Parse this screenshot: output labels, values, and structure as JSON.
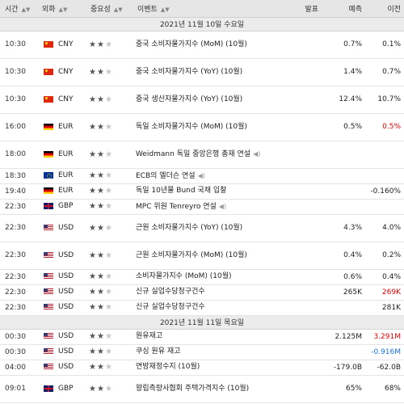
{
  "header": {
    "time": "시간",
    "currency": "외화",
    "importance": "중요성",
    "event": "이벤트",
    "actual": "발표",
    "forecast": "예측",
    "previous": "이전",
    "sort_icon": "sort-arrow-icon"
  },
  "colors": {
    "up": "#e00000",
    "down": "#1a73e8",
    "header_bg": "#e6e6e6"
  },
  "rows": [
    {
      "type": "date",
      "label": "2021년 11월 10일 수요일"
    },
    {
      "type": "event",
      "time": "10:30",
      "flag": "cn",
      "cur": "CNY",
      "stars": 2,
      "event": "중국 소비자물가지수 (MoM) (10월)",
      "actual": "",
      "forecast": "0.7%",
      "previous": "0.1%",
      "prev_color": "",
      "speech": false,
      "tall": true
    },
    {
      "type": "event",
      "time": "10:30",
      "flag": "cn",
      "cur": "CNY",
      "stars": 2,
      "event": "중국 소비자물가지수 (YoY) (10월)",
      "actual": "",
      "forecast": "1.4%",
      "previous": "0.7%",
      "prev_color": "",
      "speech": false,
      "tall": true
    },
    {
      "type": "event",
      "time": "10:30",
      "flag": "cn",
      "cur": "CNY",
      "stars": 2,
      "event": "중국 생산자물가지수 (YoY) (10월)",
      "actual": "",
      "forecast": "12.4%",
      "previous": "10.7%",
      "prev_color": "",
      "speech": false,
      "tall": true
    },
    {
      "type": "event",
      "time": "16:00",
      "flag": "de",
      "cur": "EUR",
      "stars": 2,
      "event": "독일 소비자물가지수 (MoM) (10월)",
      "actual": "",
      "forecast": "0.5%",
      "previous": "0.5%",
      "prev_color": "up",
      "speech": false,
      "tall": true
    },
    {
      "type": "event",
      "time": "18:00",
      "flag": "de",
      "cur": "EUR",
      "stars": 2,
      "event": "Weidmann 독일 중앙은행 총재 연설",
      "actual": "",
      "forecast": "",
      "previous": "",
      "prev_color": "",
      "speech": true,
      "tall": true
    },
    {
      "type": "event",
      "time": "18:30",
      "flag": "eu",
      "cur": "EUR",
      "stars": 2,
      "event": "ECB의 엘더슨 연설",
      "actual": "",
      "forecast": "",
      "previous": "",
      "prev_color": "",
      "speech": true,
      "tall": false
    },
    {
      "type": "event",
      "time": "19:40",
      "flag": "de",
      "cur": "EUR",
      "stars": 2,
      "event": "독일 10년물 Bund 국채 입찰",
      "actual": "",
      "forecast": "",
      "previous": "-0.160%",
      "prev_color": "",
      "speech": false,
      "tall": false
    },
    {
      "type": "event",
      "time": "22:30",
      "flag": "gb",
      "cur": "GBP",
      "stars": 2,
      "event": "MPC 위원 Tenreyro 연설",
      "actual": "",
      "forecast": "",
      "previous": "",
      "prev_color": "",
      "speech": true,
      "tall": false
    },
    {
      "type": "event",
      "time": "22:30",
      "flag": "us",
      "cur": "USD",
      "stars": 2,
      "event": "근원 소비자물가지수 (YoY) (10월)",
      "actual": "",
      "forecast": "4.3%",
      "previous": "4.0%",
      "prev_color": "",
      "speech": false,
      "tall": true
    },
    {
      "type": "event",
      "time": "22:30",
      "flag": "us",
      "cur": "USD",
      "stars": 2,
      "event": "근원 소비자물가지수 (MoM) (10월)",
      "actual": "",
      "forecast": "0.4%",
      "previous": "0.2%",
      "prev_color": "",
      "speech": false,
      "tall": true
    },
    {
      "type": "event",
      "time": "22:30",
      "flag": "us",
      "cur": "USD",
      "stars": 2,
      "event": "소비자물가지수 (MoM) (10월)",
      "actual": "",
      "forecast": "0.6%",
      "previous": "0.4%",
      "prev_color": "",
      "speech": false,
      "tall": false
    },
    {
      "type": "event",
      "time": "22:30",
      "flag": "us",
      "cur": "USD",
      "stars": 2,
      "event": "신규 실업수당청구건수",
      "actual": "",
      "forecast": "265K",
      "previous": "269K",
      "prev_color": "up",
      "speech": false,
      "tall": false
    },
    {
      "type": "event",
      "time": "22:30",
      "flag": "us",
      "cur": "USD",
      "stars": 2,
      "event": "신규 실업수당청구건수",
      "actual": "",
      "forecast": "",
      "previous": "281K",
      "prev_color": "",
      "speech": false,
      "tall": false
    },
    {
      "type": "date",
      "label": "2021년 11월 11일 목요일"
    },
    {
      "type": "event",
      "time": "00:30",
      "flag": "us",
      "cur": "USD",
      "stars": 2,
      "event": "원유재고",
      "actual": "",
      "forecast": "2.125M",
      "previous": "3.291M",
      "prev_color": "up",
      "speech": false,
      "tall": false
    },
    {
      "type": "event",
      "time": "00:30",
      "flag": "us",
      "cur": "USD",
      "stars": 2,
      "event": "쿠싱 원유 재고",
      "actual": "",
      "forecast": "",
      "previous": "-0.916M",
      "prev_color": "dn",
      "speech": false,
      "tall": false
    },
    {
      "type": "event",
      "time": "04:00",
      "flag": "us",
      "cur": "USD",
      "stars": 2,
      "event": "연방재정수지 (10월)",
      "actual": "",
      "forecast": "-179.0B",
      "previous": "-62.0B",
      "prev_color": "",
      "speech": false,
      "tall": false
    },
    {
      "type": "event",
      "time": "09:01",
      "flag": "gb",
      "cur": "GBP",
      "stars": 2,
      "event": "왕립측량사협회 주택가격지수 (10월)",
      "actual": "",
      "forecast": "65%",
      "previous": "68%",
      "prev_color": "",
      "speech": false,
      "tall": true
    }
  ]
}
